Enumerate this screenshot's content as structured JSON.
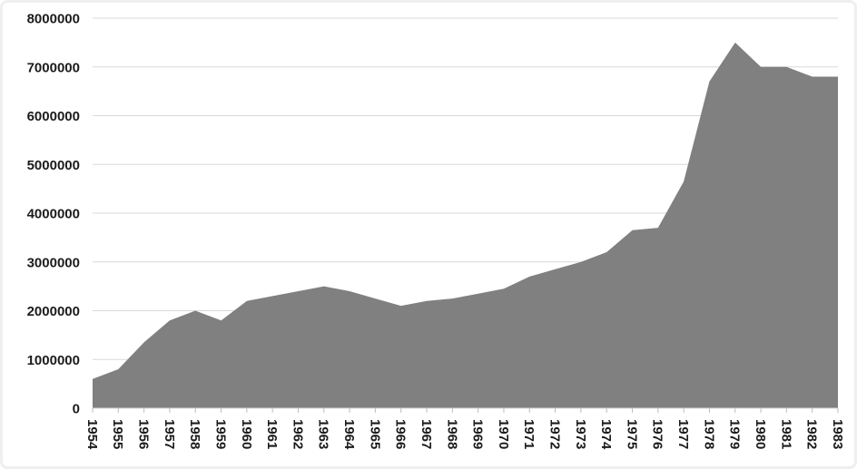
{
  "chart_data": {
    "type": "area",
    "title": "",
    "categories": [
      "1954",
      "1955",
      "1956",
      "1957",
      "1958",
      "1959",
      "1960",
      "1961",
      "1962",
      "1963",
      "1964",
      "1965",
      "1966",
      "1967",
      "1968",
      "1969",
      "1970",
      "1971",
      "1972",
      "1973",
      "1974",
      "1975",
      "1976",
      "1977",
      "1978",
      "1979",
      "1980",
      "1981",
      "1982",
      "1983"
    ],
    "values": [
      600000,
      800000,
      1350000,
      1800000,
      2000000,
      1800000,
      2200000,
      2300000,
      2400000,
      2500000,
      2400000,
      2250000,
      2100000,
      2200000,
      2250000,
      2350000,
      2450000,
      2700000,
      2850000,
      3000000,
      3200000,
      3650000,
      3700000,
      4650000,
      6700000,
      7500000,
      7000000,
      7000000,
      6800000,
      6800000
    ],
    "xlabel": "",
    "ylabel": "",
    "ylim": [
      0,
      8000000
    ],
    "ytick_interval": 1000000,
    "y_tick_labels": [
      "0",
      "1000000",
      "2000000",
      "3000000",
      "4000000",
      "5000000",
      "6000000",
      "7000000",
      "8000000"
    ],
    "grid": true,
    "legend": "none",
    "x_label_rotation_deg": 90,
    "colors": {
      "area": "#808080",
      "gridline": "#d9d9d9",
      "axis_line": "#d9d9d9",
      "tick": "#c0bebe",
      "label": "#1b1b1b",
      "background": "#ffffff",
      "frame": "#f0eef0"
    }
  }
}
